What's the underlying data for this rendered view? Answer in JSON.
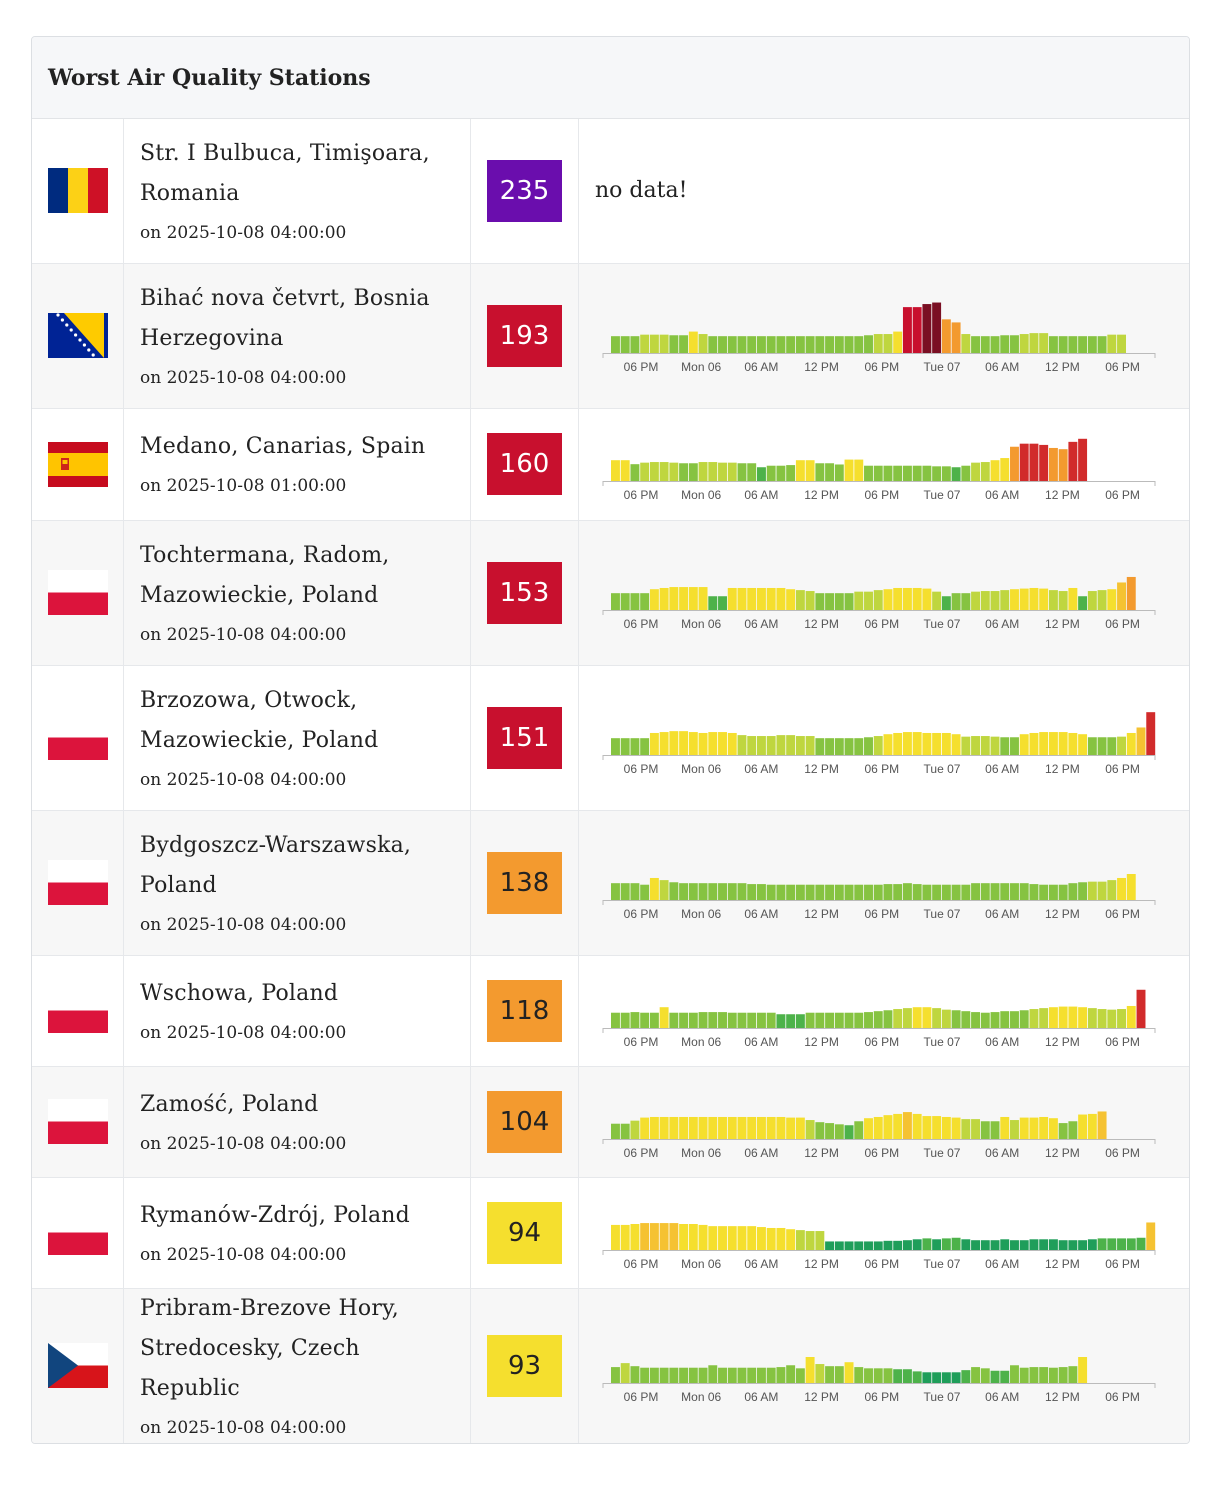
{
  "title": "Worst Air Quality Stations",
  "x_ticks": [
    "06 PM",
    "Mon 06",
    "06 AM",
    "12 PM",
    "06 PM",
    "Tue 07",
    "06 AM",
    "12 PM",
    "06 PM"
  ],
  "colors": {
    "good_dark": "#1f9e5a",
    "good": "#4db24a",
    "fair": "#86c341",
    "moderate": "#bfd63f",
    "yellow": "#f5df2e",
    "light_yellow": "#fbe94a",
    "orange_light": "#f5c232",
    "orange": "#f39a2f",
    "red": "#d12b2b",
    "crimson": "#c8102e",
    "dark_red": "#7a0f23",
    "purple": "#6a0dad"
  },
  "stations": [
    {
      "name": "Str. I Bulbuca, Timişoara, Romania",
      "time": "on 2025-10-08 04:00:00",
      "aqi": "235",
      "aqi_color": "#6a0dad",
      "aqi_text_color": "#ffffff",
      "flag": "romania",
      "no_data": "no data!"
    },
    {
      "name": "Bihać nova četvrt, Bosnia Herzegovina",
      "time": "on 2025-10-08 04:00:00",
      "aqi": "193",
      "aqi_color": "#c8102e",
      "aqi_text_color": "#ffffff",
      "flag": "bosnia",
      "chart_data": {
        "type": "bar",
        "x_ticks": [
          "06 PM",
          "Mon 06",
          "06 AM",
          "12 PM",
          "06 PM",
          "Tue 07",
          "06 AM",
          "12 PM",
          "06 PM"
        ],
        "values": [
          55,
          55,
          55,
          60,
          60,
          60,
          58,
          58,
          70,
          62,
          55,
          55,
          55,
          55,
          55,
          55,
          55,
          55,
          55,
          55,
          55,
          55,
          55,
          55,
          55,
          55,
          58,
          62,
          62,
          70,
          150,
          150,
          160,
          165,
          110,
          100,
          62,
          55,
          55,
          55,
          58,
          58,
          62,
          65,
          65,
          55,
          55,
          55,
          55,
          55,
          55,
          60,
          60
        ]
      }
    },
    {
      "name": "Medano, Canarias, Spain",
      "time": "on 2025-10-08 01:00:00",
      "aqi": "160",
      "aqi_color": "#c8102e",
      "aqi_text_color": "#ffffff",
      "flag": "spain",
      "chart_data": {
        "type": "bar",
        "x_ticks": [
          "06 PM",
          "Mon 06",
          "06 AM",
          "12 PM",
          "06 PM",
          "Tue 07",
          "06 AM",
          "12 PM",
          "06 PM"
        ],
        "values": [
          68,
          68,
          55,
          60,
          62,
          62,
          60,
          58,
          58,
          62,
          62,
          60,
          60,
          58,
          58,
          45,
          50,
          50,
          52,
          68,
          68,
          58,
          58,
          54,
          70,
          70,
          50,
          50,
          50,
          50,
          50,
          50,
          50,
          48,
          48,
          45,
          50,
          60,
          62,
          68,
          75,
          112,
          122,
          122,
          118,
          108,
          104,
          128,
          138
        ]
      }
    },
    {
      "name": "Tochtermana, Radom, Mazowieckie, Poland",
      "time": "on 2025-10-08 04:00:00",
      "aqi": "153",
      "aqi_color": "#c8102e",
      "aqi_text_color": "#ffffff",
      "flag": "poland",
      "chart_data": {
        "type": "bar",
        "x_ticks": [
          "06 PM",
          "Mon 06",
          "06 AM",
          "12 PM",
          "06 PM",
          "Tue 07",
          "06 AM",
          "12 PM",
          "06 PM"
        ],
        "values": [
          55,
          55,
          55,
          55,
          68,
          72,
          75,
          75,
          75,
          75,
          45,
          45,
          72,
          72,
          72,
          72,
          72,
          72,
          68,
          65,
          62,
          55,
          55,
          55,
          55,
          60,
          60,
          65,
          68,
          72,
          72,
          72,
          70,
          60,
          45,
          55,
          55,
          60,
          62,
          62,
          65,
          68,
          70,
          72,
          70,
          65,
          62,
          72,
          45,
          62,
          65,
          68,
          90,
          108
        ]
      }
    },
    {
      "name": "Brzozowa, Otwock, Mazowieckie, Poland",
      "time": "on 2025-10-08 04:00:00",
      "aqi": "151",
      "aqi_color": "#c8102e",
      "aqi_text_color": "#ffffff",
      "flag": "poland",
      "chart_data": {
        "type": "bar",
        "x_ticks": [
          "06 PM",
          "Mon 06",
          "06 AM",
          "12 PM",
          "06 PM",
          "Tue 07",
          "06 AM",
          "12 PM",
          "06 PM"
        ],
        "values": [
          55,
          55,
          55,
          55,
          72,
          75,
          78,
          78,
          75,
          72,
          75,
          75,
          72,
          65,
          62,
          62,
          62,
          65,
          65,
          62,
          62,
          55,
          55,
          55,
          55,
          55,
          58,
          62,
          68,
          72,
          75,
          75,
          72,
          72,
          72,
          68,
          60,
          62,
          62,
          60,
          58,
          58,
          68,
          72,
          75,
          75,
          75,
          72,
          68,
          58,
          58,
          58,
          60,
          72,
          90,
          140
        ]
      }
    },
    {
      "name": "Bydgoszcz-Warszawska, Poland",
      "time": "on 2025-10-08 04:00:00",
      "aqi": "138",
      "aqi_color": "#f39a2f",
      "aqi_text_color": "#222222",
      "flag": "poland",
      "chart_data": {
        "type": "bar",
        "x_ticks": [
          "06 PM",
          "Mon 06",
          "06 AM",
          "12 PM",
          "06 PM",
          "Tue 07",
          "06 AM",
          "12 PM",
          "06 PM"
        ],
        "values": [
          55,
          55,
          55,
          50,
          72,
          65,
          58,
          55,
          55,
          55,
          55,
          55,
          55,
          55,
          52,
          52,
          50,
          50,
          50,
          50,
          50,
          50,
          50,
          50,
          50,
          50,
          50,
          50,
          52,
          52,
          55,
          52,
          50,
          50,
          50,
          50,
          50,
          55,
          55,
          55,
          55,
          55,
          55,
          52,
          50,
          50,
          50,
          55,
          58,
          60,
          60,
          65,
          72,
          85
        ]
      }
    },
    {
      "name": "Wschowa, Poland",
      "time": "on 2025-10-08 04:00:00",
      "aqi": "118",
      "aqi_color": "#f39a2f",
      "aqi_text_color": "#222222",
      "flag": "poland",
      "chart_data": {
        "type": "bar",
        "x_ticks": [
          "06 PM",
          "Mon 06",
          "06 AM",
          "12 PM",
          "06 PM",
          "Tue 07",
          "06 AM",
          "12 PM",
          "06 PM"
        ],
        "values": [
          50,
          50,
          52,
          50,
          50,
          68,
          50,
          50,
          50,
          52,
          52,
          52,
          50,
          50,
          50,
          50,
          50,
          45,
          45,
          45,
          50,
          50,
          50,
          50,
          50,
          50,
          52,
          55,
          58,
          62,
          65,
          68,
          68,
          65,
          60,
          58,
          55,
          52,
          50,
          52,
          55,
          55,
          58,
          62,
          65,
          68,
          70,
          70,
          68,
          65,
          62,
          60,
          62,
          72,
          125
        ]
      }
    },
    {
      "name": "Zamość, Poland",
      "time": "on 2025-10-08 04:00:00",
      "aqi": "104",
      "aqi_color": "#f39a2f",
      "aqi_text_color": "#222222",
      "flag": "poland",
      "chart_data": {
        "type": "bar",
        "x_ticks": [
          "06 PM",
          "Mon 06",
          "06 AM",
          "12 PM",
          "06 PM",
          "Tue 07",
          "06 AM",
          "12 PM",
          "06 PM"
        ],
        "values": [
          50,
          50,
          60,
          70,
          72,
          72,
          72,
          72,
          72,
          72,
          72,
          72,
          72,
          72,
          72,
          72,
          72,
          72,
          70,
          70,
          62,
          55,
          52,
          48,
          45,
          58,
          68,
          72,
          78,
          82,
          88,
          82,
          75,
          75,
          72,
          70,
          65,
          65,
          58,
          58,
          72,
          62,
          70,
          70,
          72,
          68,
          52,
          58,
          80,
          82,
          90
        ]
      }
    },
    {
      "name": "Rymanów-Zdrój, Poland",
      "time": "on 2025-10-08 04:00:00",
      "aqi": "94",
      "aqi_color": "#f5df2e",
      "aqi_text_color": "#222222",
      "flag": "poland",
      "chart_data": {
        "type": "bar",
        "x_ticks": [
          "06 PM",
          "Mon 06",
          "06 AM",
          "12 PM",
          "06 PM",
          "Tue 07",
          "06 AM",
          "12 PM",
          "06 PM"
        ],
        "values": [
          82,
          82,
          85,
          88,
          88,
          88,
          88,
          85,
          85,
          82,
          78,
          78,
          78,
          78,
          78,
          75,
          72,
          72,
          68,
          65,
          62,
          62,
          28,
          28,
          28,
          28,
          28,
          28,
          30,
          30,
          32,
          35,
          38,
          35,
          38,
          40,
          35,
          32,
          32,
          32,
          35,
          32,
          32,
          35,
          35,
          35,
          32,
          32,
          32,
          35,
          38,
          38,
          38,
          38,
          40,
          90
        ]
      }
    },
    {
      "name": "Pribram-Brezove Hory, Stredocesky, Czech Republic",
      "time": "on 2025-10-08 04:00:00",
      "aqi": "93",
      "aqi_color": "#f5df2e",
      "aqi_text_color": "#222222",
      "flag": "czech",
      "chart_data": {
        "type": "bar",
        "x_ticks": [
          "06 PM",
          "Mon 06",
          "06 AM",
          "12 PM",
          "06 PM",
          "Tue 07",
          "06 AM",
          "12 PM",
          "06 PM"
        ],
        "values": [
          52,
          65,
          55,
          50,
          50,
          50,
          50,
          50,
          50,
          50,
          58,
          50,
          50,
          50,
          50,
          50,
          50,
          52,
          58,
          48,
          85,
          62,
          55,
          55,
          68,
          52,
          48,
          48,
          48,
          45,
          45,
          38,
          35,
          35,
          35,
          35,
          42,
          52,
          48,
          40,
          40,
          58,
          50,
          52,
          52,
          50,
          52,
          55,
          85
        ]
      }
    }
  ]
}
